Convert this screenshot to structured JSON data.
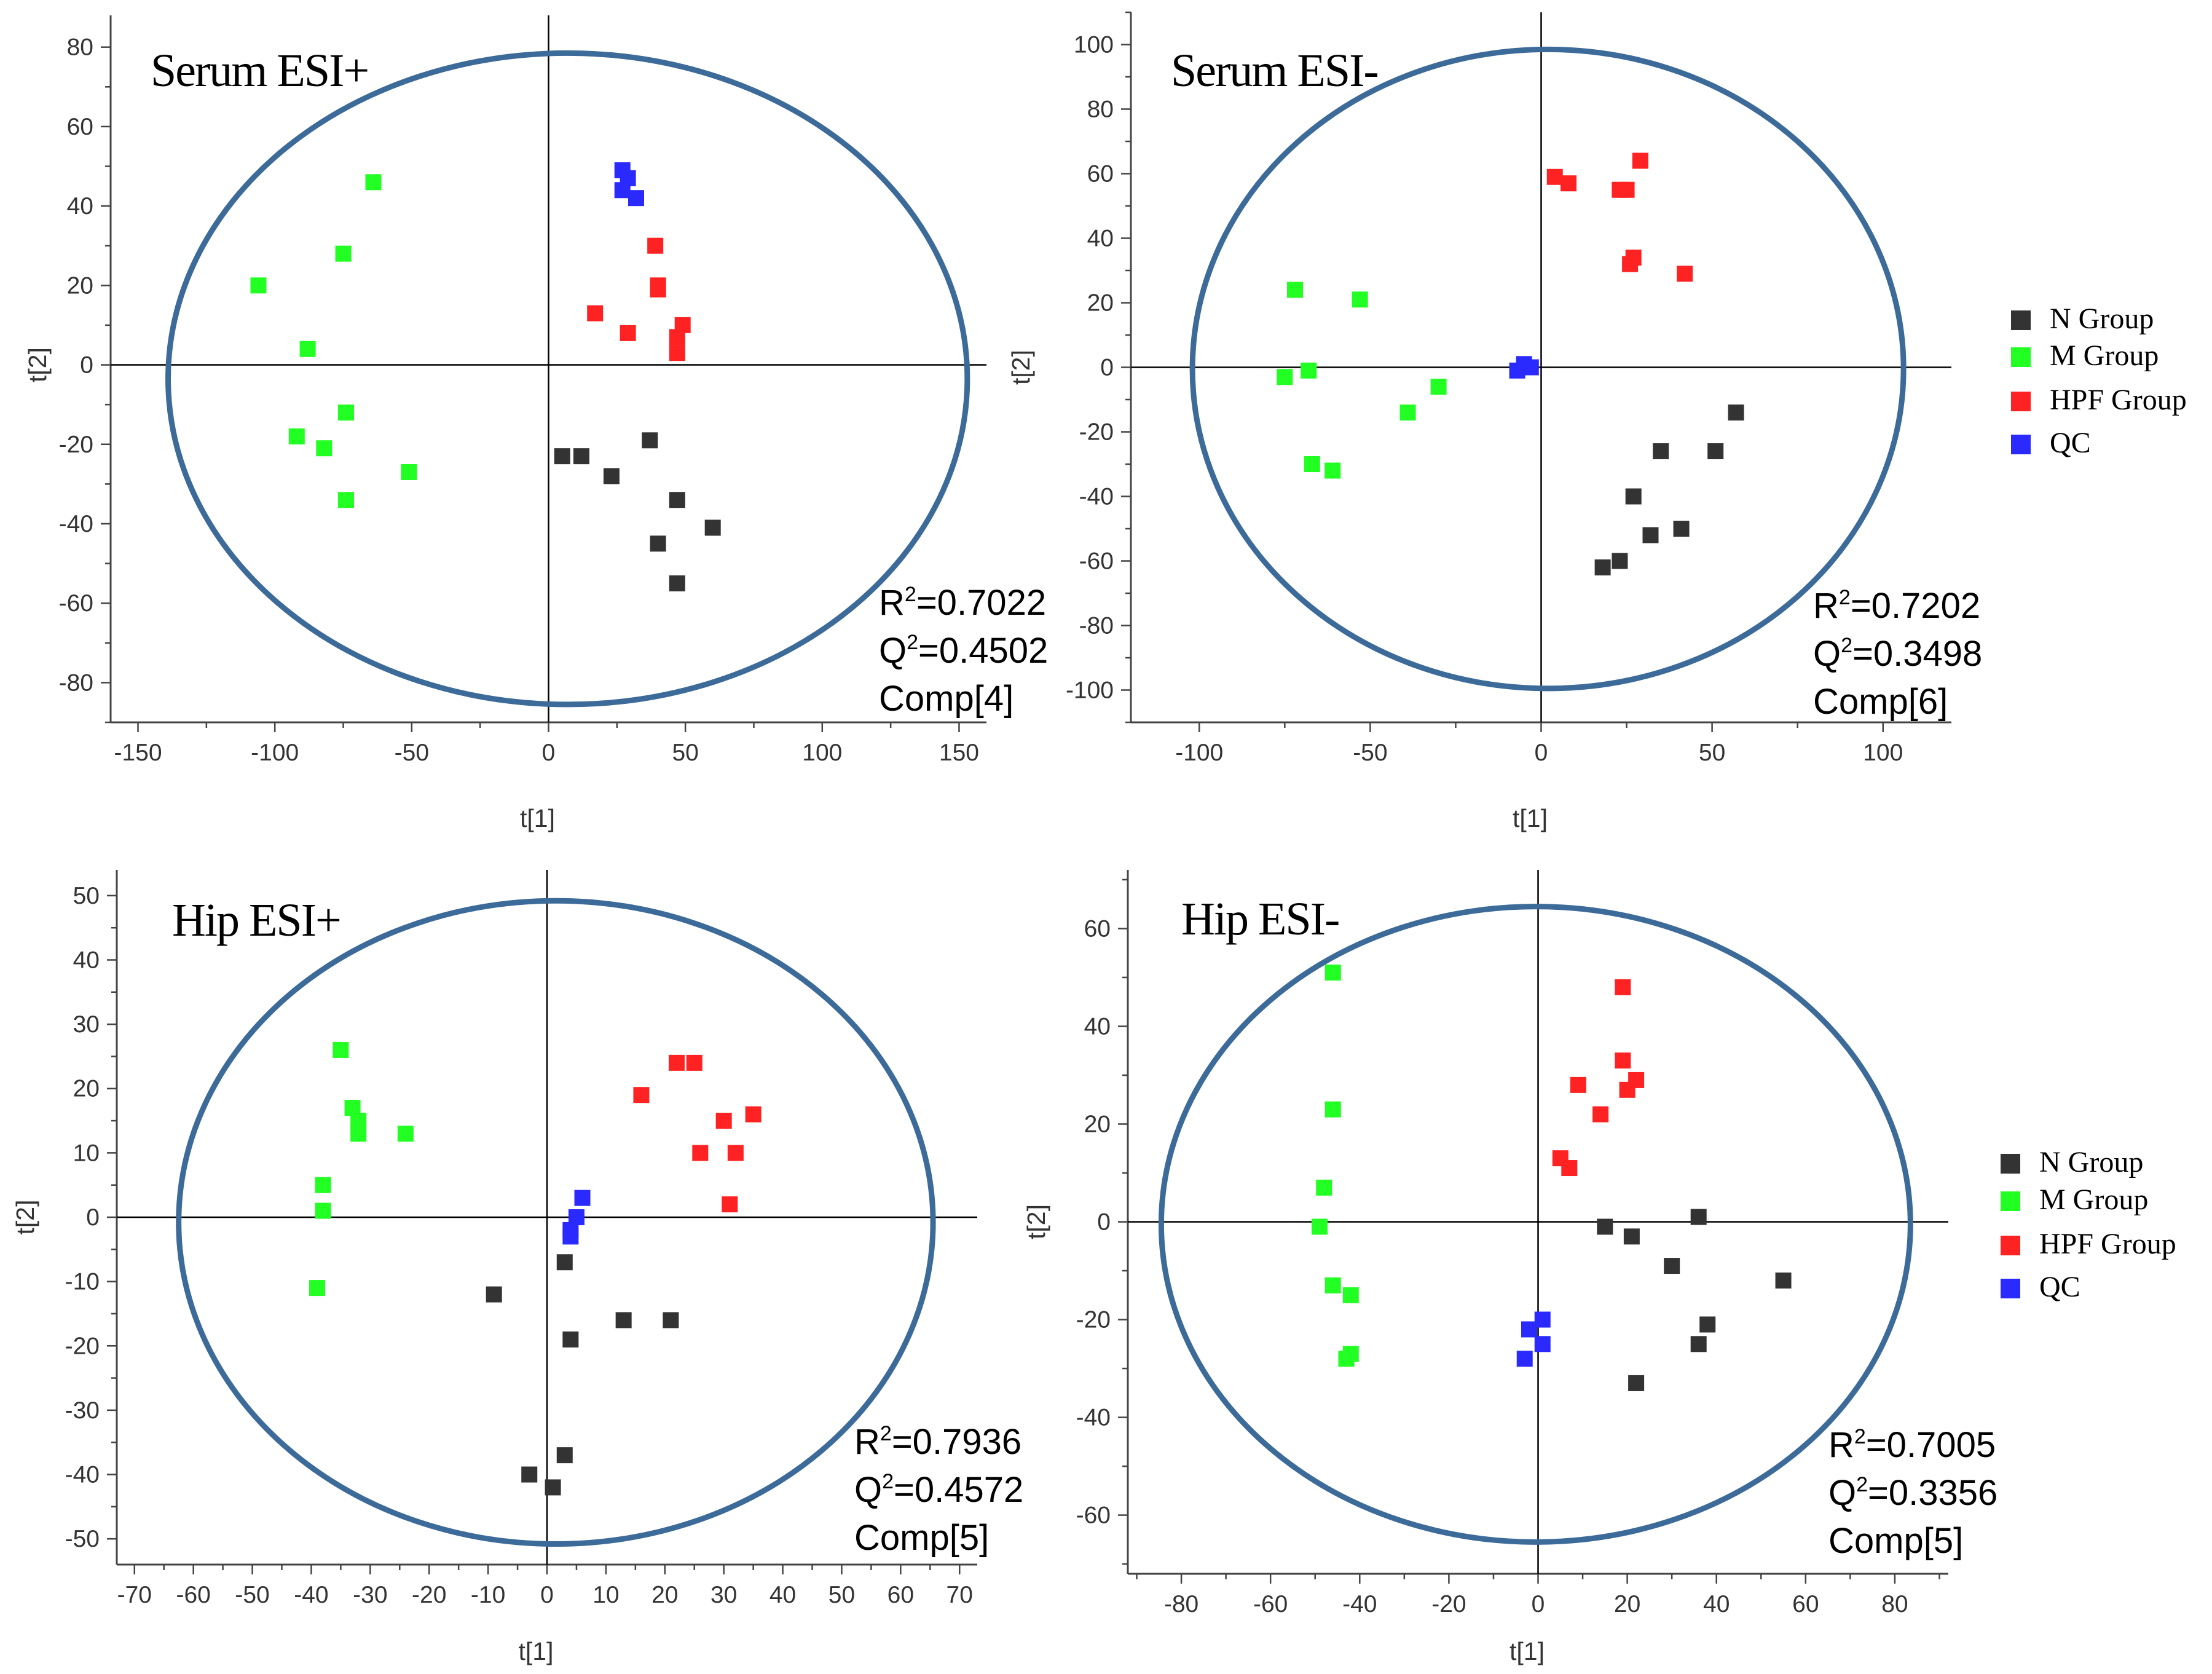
{
  "colors": {
    "N Group": "#333333",
    "M Group": "#22ff22",
    "HPF Group": "#ff2222",
    "QC": "#2a2aff",
    "ellipse": "#3c6a99",
    "axis": "#444444"
  },
  "legends": [
    {
      "entries": [
        "N Group",
        "M Group",
        "HPF Group",
        "QC"
      ]
    },
    {
      "entries": [
        "N Group",
        "M Group",
        "HPF Group",
        "QC"
      ]
    }
  ],
  "chart_data": [
    {
      "type": "scatter",
      "title": "Serum ESI+",
      "xlabel": "t[1]",
      "ylabel": "t[2]",
      "xlim": [
        -160,
        160
      ],
      "ylim": [
        -90,
        88
      ],
      "xticks": [
        -150,
        -100,
        -50,
        0,
        50,
        100,
        150
      ],
      "yticks": [
        -80,
        -60,
        -40,
        -20,
        0,
        20,
        40,
        60,
        80
      ],
      "ellipse": {
        "cx": 7,
        "cy": -3.5,
        "rx": 146,
        "ry": 82
      },
      "stats": {
        "r2_label": "R",
        "r2_value": "=0.7022",
        "q2_label": "Q",
        "q2_value": "=0.4502",
        "comp": "Comp[4]"
      },
      "series": [
        {
          "name": "N Group",
          "points": [
            [
              5,
              -23
            ],
            [
              12,
              -23
            ],
            [
              23,
              -28
            ],
            [
              37,
              -19
            ],
            [
              47,
              -34
            ],
            [
              40,
              -45
            ],
            [
              60,
              -41
            ],
            [
              47,
              -55
            ]
          ]
        },
        {
          "name": "M Group",
          "points": [
            [
              -106,
              20
            ],
            [
              -88,
              4
            ],
            [
              -75,
              28
            ],
            [
              -64,
              46
            ],
            [
              -92,
              -18
            ],
            [
              -82,
              -21
            ],
            [
              -74,
              -12
            ],
            [
              -74,
              -34
            ],
            [
              -51,
              -27
            ]
          ]
        },
        {
          "name": "HPF Group",
          "points": [
            [
              39,
              30
            ],
            [
              40,
              20
            ],
            [
              40,
              19
            ],
            [
              17,
              13
            ],
            [
              29,
              8
            ],
            [
              49,
              10
            ],
            [
              47,
              7
            ],
            [
              47,
              3
            ]
          ]
        },
        {
          "name": "QC",
          "points": [
            [
              27,
              49
            ],
            [
              29,
              47
            ],
            [
              27,
              44
            ],
            [
              32,
              42
            ]
          ]
        }
      ]
    },
    {
      "type": "scatter",
      "title": "Serum ESI-",
      "xlabel": "t[1]",
      "ylabel": "t[2]",
      "xlim": [
        -120,
        120
      ],
      "ylim": [
        -110,
        110
      ],
      "xticks": [
        -100,
        -50,
        0,
        50,
        100
      ],
      "yticks": [
        -100,
        -80,
        -60,
        -40,
        -20,
        0,
        20,
        40,
        60,
        80,
        100
      ],
      "ellipse": {
        "cx": 2,
        "cy": -0.5,
        "rx": 104,
        "ry": 99
      },
      "stats": {
        "r2_label": "R",
        "r2_value": "=0.7202",
        "q2_label": "Q",
        "q2_value": "=0.3498",
        "comp": "Comp[6]"
      },
      "series": [
        {
          "name": "N Group",
          "points": [
            [
              57,
              -14
            ],
            [
              51,
              -26
            ],
            [
              35,
              -26
            ],
            [
              27,
              -40
            ],
            [
              32,
              -52
            ],
            [
              41,
              -50
            ],
            [
              23,
              -60
            ],
            [
              18,
              -62
            ]
          ]
        },
        {
          "name": "M Group",
          "points": [
            [
              -72,
              24
            ],
            [
              -53,
              21
            ],
            [
              -75,
              -3
            ],
            [
              -68,
              -1
            ],
            [
              -30,
              -6
            ],
            [
              -39,
              -14
            ],
            [
              -67,
              -30
            ],
            [
              -61,
              -32
            ]
          ]
        },
        {
          "name": "HPF Group",
          "points": [
            [
              4,
              59
            ],
            [
              8,
              57
            ],
            [
              29,
              64
            ],
            [
              23,
              55
            ],
            [
              25,
              55
            ],
            [
              27,
              34
            ],
            [
              26,
              32
            ],
            [
              42,
              29
            ]
          ]
        },
        {
          "name": "QC",
          "points": [
            [
              -7,
              -1
            ],
            [
              -5,
              1
            ],
            [
              -3,
              0
            ]
          ]
        }
      ]
    },
    {
      "type": "scatter",
      "title": "Hip ESI+",
      "xlabel": "t[1]",
      "ylabel": "t[2]",
      "xlim": [
        -73,
        73
      ],
      "ylim": [
        -54,
        54
      ],
      "xticks": [
        -70,
        -60,
        -50,
        -40,
        -30,
        -20,
        -10,
        0,
        10,
        20,
        30,
        40,
        50,
        60,
        70
      ],
      "yticks": [
        -50,
        -40,
        -30,
        -20,
        -10,
        0,
        10,
        20,
        30,
        40,
        50
      ],
      "ellipse": {
        "cx": 1.5,
        "cy": -0.8,
        "rx": 64,
        "ry": 50
      },
      "stats": {
        "r2_label": "R",
        "r2_value": "=0.7936",
        "q2_label": "Q",
        "q2_value": "=0.4572",
        "comp": "Comp[5]"
      },
      "series": [
        {
          "name": "N Group",
          "points": [
            [
              3,
              -7
            ],
            [
              -9,
              -12
            ],
            [
              4,
              -19
            ],
            [
              13,
              -16
            ],
            [
              21,
              -16
            ],
            [
              -3,
              -40
            ],
            [
              3,
              -37
            ],
            [
              1,
              -42
            ]
          ]
        },
        {
          "name": "M Group",
          "points": [
            [
              -35,
              26
            ],
            [
              -33,
              17
            ],
            [
              -32,
              15
            ],
            [
              -32,
              13
            ],
            [
              -24,
              13
            ],
            [
              -38,
              5
            ],
            [
              -38,
              1
            ],
            [
              -39,
              -11
            ]
          ]
        },
        {
          "name": "HPF Group",
          "points": [
            [
              22,
              24
            ],
            [
              25,
              24
            ],
            [
              16,
              19
            ],
            [
              30,
              15
            ],
            [
              35,
              16
            ],
            [
              26,
              10
            ],
            [
              32,
              10
            ],
            [
              31,
              2
            ]
          ]
        },
        {
          "name": "QC",
          "points": [
            [
              6,
              3
            ],
            [
              5,
              0
            ],
            [
              4,
              -2
            ],
            [
              4,
              -3
            ]
          ]
        }
      ]
    },
    {
      "type": "scatter",
      "title": "Hip ESI-",
      "xlabel": "t[1]",
      "ylabel": "t[2]",
      "xlim": [
        -92,
        92
      ],
      "ylim": [
        -72,
        72
      ],
      "xticks": [
        -80,
        -60,
        -40,
        -20,
        0,
        20,
        40,
        60,
        80
      ],
      "yticks": [
        -60,
        -40,
        -20,
        0,
        20,
        40,
        60
      ],
      "ellipse": {
        "cx": -0.5,
        "cy": -0.5,
        "rx": 84,
        "ry": 65
      },
      "stats": {
        "r2_label": "R",
        "r2_value": "=0.7005",
        "q2_label": "Q",
        "q2_value": "=0.3356",
        "comp": "Comp[5]"
      },
      "series": [
        {
          "name": "N Group",
          "points": [
            [
              15,
              -1
            ],
            [
              21,
              -3
            ],
            [
              36,
              1
            ],
            [
              30,
              -9
            ],
            [
              55,
              -12
            ],
            [
              38,
              -21
            ],
            [
              36,
              -25
            ],
            [
              22,
              -33
            ]
          ]
        },
        {
          "name": "M Group",
          "points": [
            [
              -46,
              51
            ],
            [
              -46,
              23
            ],
            [
              -48,
              7
            ],
            [
              -49,
              -1
            ],
            [
              -46,
              -13
            ],
            [
              -42,
              -15
            ],
            [
              -43,
              -28
            ],
            [
              -42,
              -27
            ]
          ]
        },
        {
          "name": "HPF Group",
          "points": [
            [
              19,
              48
            ],
            [
              19,
              33
            ],
            [
              9,
              28
            ],
            [
              20,
              27
            ],
            [
              22,
              29
            ],
            [
              14,
              22
            ],
            [
              5,
              13
            ],
            [
              7,
              11
            ]
          ]
        },
        {
          "name": "QC",
          "points": [
            [
              1,
              -20
            ],
            [
              -2,
              -22
            ],
            [
              1,
              -25
            ],
            [
              -3,
              -28
            ]
          ]
        }
      ]
    }
  ]
}
